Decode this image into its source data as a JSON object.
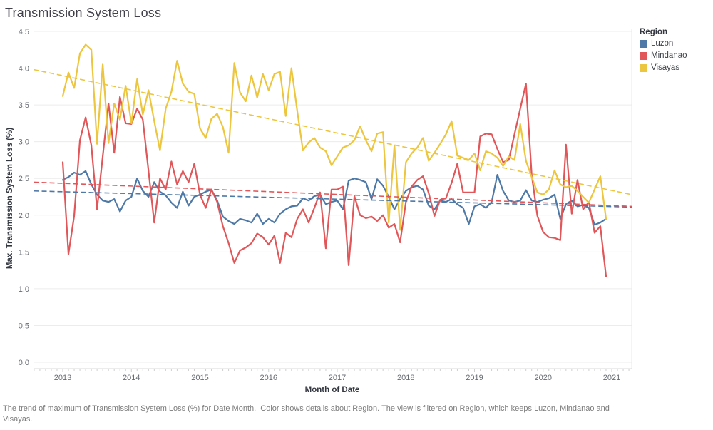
{
  "title": "Transmission System Loss",
  "y_axis": {
    "title": "Max. Transmission System Loss (%)"
  },
  "x_axis": {
    "title": "Month of Date"
  },
  "legend": {
    "title": "Region",
    "items": [
      {
        "label": "Luzon",
        "color": "#4e79a7"
      },
      {
        "label": "Mindanao",
        "color": "#e15759"
      },
      {
        "label": "Visayas",
        "color": "#edc63f"
      }
    ]
  },
  "caption": "The trend of maximum of Transmission System Loss (%) for Date Month.  Color shows details about Region. The view is filtered on Region, which keeps Luzon, Mindanao and Visayas.",
  "colors": {
    "luzon": "#4e79a7",
    "mindanao": "#e15759",
    "visayas": "#edc63f",
    "grid": "#ececec",
    "axis_line": "#d9d9d9",
    "tick": "#cfcfcf",
    "tick_label": "#666b73"
  },
  "chart_data": {
    "type": "line",
    "title": "Transmission System Loss",
    "xlabel": "Month of Date",
    "ylabel": "Max. Transmission System Loss (%)",
    "ylim": [
      0.0,
      4.5
    ],
    "y_tick_step": 0.5,
    "y_tick_labels": [
      "0.0",
      "0.5",
      "1.0",
      "1.5",
      "2.0",
      "2.5",
      "3.0",
      "3.5",
      "4.0",
      "4.5"
    ],
    "x_tick_years": [
      "2013",
      "2014",
      "2015",
      "2016",
      "2017",
      "2018",
      "2019",
      "2020",
      "2021"
    ],
    "x_unit": "month",
    "grid": "horizontal",
    "legend_position": "top-right",
    "months": [
      "2013-01",
      "2013-02",
      "2013-03",
      "2013-04",
      "2013-05",
      "2013-06",
      "2013-07",
      "2013-08",
      "2013-09",
      "2013-10",
      "2013-11",
      "2013-12",
      "2014-01",
      "2014-02",
      "2014-03",
      "2014-04",
      "2014-05",
      "2014-06",
      "2014-07",
      "2014-08",
      "2014-09",
      "2014-10",
      "2014-11",
      "2014-12",
      "2015-01",
      "2015-02",
      "2015-03",
      "2015-04",
      "2015-05",
      "2015-06",
      "2015-07",
      "2015-08",
      "2015-09",
      "2015-10",
      "2015-11",
      "2015-12",
      "2016-01",
      "2016-02",
      "2016-03",
      "2016-04",
      "2016-05",
      "2016-06",
      "2016-07",
      "2016-08",
      "2016-09",
      "2016-10",
      "2016-11",
      "2016-12",
      "2017-01",
      "2017-02",
      "2017-03",
      "2017-04",
      "2017-05",
      "2017-06",
      "2017-07",
      "2017-08",
      "2017-09",
      "2017-10",
      "2017-11",
      "2017-12",
      "2018-01",
      "2018-02",
      "2018-03",
      "2018-04",
      "2018-05",
      "2018-06",
      "2018-07",
      "2018-08",
      "2018-09",
      "2018-10",
      "2018-11",
      "2018-12",
      "2019-01",
      "2019-02",
      "2019-03",
      "2019-04",
      "2019-05",
      "2019-06",
      "2019-07",
      "2019-08",
      "2019-09",
      "2019-10",
      "2019-11",
      "2019-12",
      "2020-01",
      "2020-02",
      "2020-03",
      "2020-04",
      "2020-05",
      "2020-06",
      "2020-07",
      "2020-08",
      "2020-09",
      "2020-10",
      "2020-11",
      "2020-12"
    ],
    "series": [
      {
        "name": "Luzon",
        "color": "#4e79a7",
        "values": [
          2.48,
          2.52,
          2.58,
          2.55,
          2.6,
          2.42,
          2.28,
          2.2,
          2.18,
          2.22,
          2.05,
          2.2,
          2.25,
          2.5,
          2.33,
          2.25,
          2.45,
          2.32,
          2.27,
          2.17,
          2.1,
          2.32,
          2.13,
          2.25,
          2.28,
          2.32,
          2.35,
          2.2,
          1.98,
          1.92,
          1.88,
          1.95,
          1.93,
          1.9,
          2.02,
          1.88,
          1.95,
          1.9,
          2.02,
          2.08,
          2.12,
          2.13,
          2.23,
          2.2,
          2.26,
          2.28,
          2.15,
          2.18,
          2.2,
          2.08,
          2.47,
          2.5,
          2.48,
          2.45,
          2.22,
          2.49,
          2.4,
          2.25,
          2.08,
          2.22,
          2.33,
          2.38,
          2.4,
          2.35,
          2.13,
          2.08,
          2.2,
          2.18,
          2.22,
          2.15,
          2.1,
          1.88,
          2.12,
          2.15,
          2.1,
          2.18,
          2.55,
          2.33,
          2.2,
          2.18,
          2.2,
          2.34,
          2.2,
          2.18,
          2.21,
          2.23,
          2.28,
          1.95,
          2.15,
          2.2,
          2.12,
          2.14,
          2.1,
          1.87,
          1.9,
          1.95
        ]
      },
      {
        "name": "Mindanao",
        "color": "#e15759",
        "values": [
          2.72,
          1.47,
          1.99,
          3.02,
          3.33,
          2.95,
          2.08,
          2.8,
          3.52,
          2.85,
          3.61,
          3.25,
          3.24,
          3.45,
          3.3,
          2.6,
          1.9,
          2.5,
          2.35,
          2.73,
          2.42,
          2.6,
          2.45,
          2.7,
          2.28,
          2.1,
          2.35,
          2.18,
          1.85,
          1.62,
          1.35,
          1.52,
          1.56,
          1.62,
          1.75,
          1.7,
          1.6,
          1.72,
          1.35,
          1.76,
          1.7,
          1.95,
          2.08,
          1.9,
          2.1,
          2.31,
          1.55,
          2.35,
          2.35,
          2.39,
          1.32,
          2.26,
          2.0,
          1.96,
          1.98,
          1.92,
          2.0,
          1.83,
          1.88,
          1.63,
          2.18,
          2.39,
          2.48,
          2.53,
          2.3,
          1.99,
          2.21,
          2.23,
          2.44,
          2.7,
          2.31,
          2.31,
          2.31,
          3.07,
          3.11,
          3.1,
          2.9,
          2.72,
          2.75,
          3.1,
          3.45,
          3.79,
          2.55,
          1.99,
          1.77,
          1.7,
          1.69,
          1.66,
          2.96,
          2.02,
          2.48,
          2.08,
          2.18,
          1.76,
          1.85,
          1.17
        ]
      },
      {
        "name": "Visayas",
        "color": "#edc63f",
        "values": [
          3.62,
          3.94,
          3.73,
          4.2,
          4.32,
          4.25,
          2.97,
          4.05,
          2.98,
          3.52,
          3.3,
          3.76,
          3.25,
          3.85,
          3.37,
          3.7,
          3.28,
          2.88,
          3.45,
          3.68,
          4.1,
          3.79,
          3.68,
          3.65,
          3.18,
          3.05,
          3.31,
          3.38,
          3.2,
          2.85,
          4.07,
          3.67,
          3.55,
          3.9,
          3.6,
          3.92,
          3.7,
          3.92,
          3.95,
          3.35,
          4.0,
          3.42,
          2.88,
          2.99,
          3.05,
          2.92,
          2.87,
          2.68,
          2.8,
          2.92,
          2.95,
          3.02,
          3.21,
          3.02,
          2.87,
          3.11,
          3.13,
          1.9,
          2.95,
          1.8,
          2.72,
          2.84,
          2.92,
          3.05,
          2.74,
          2.85,
          2.97,
          3.1,
          3.28,
          2.81,
          2.78,
          2.75,
          2.84,
          2.61,
          2.87,
          2.84,
          2.78,
          2.67,
          2.8,
          2.75,
          3.24,
          2.74,
          2.52,
          2.31,
          2.28,
          2.35,
          2.61,
          2.42,
          2.38,
          2.4,
          2.33,
          2.25,
          2.17,
          2.35,
          2.53,
          1.95
        ]
      }
    ],
    "trend_lines": [
      {
        "name": "Luzon trend",
        "color": "#4e79a7",
        "style": "dashed",
        "start_value": 2.33,
        "end_value": 2.11
      },
      {
        "name": "Mindanao trend",
        "color": "#e15759",
        "style": "dashed",
        "start_value": 2.45,
        "end_value": 2.12
      },
      {
        "name": "Visayas trend",
        "color": "#edc63f",
        "style": "dashed",
        "start_value": 3.98,
        "end_value": 2.28
      }
    ]
  }
}
